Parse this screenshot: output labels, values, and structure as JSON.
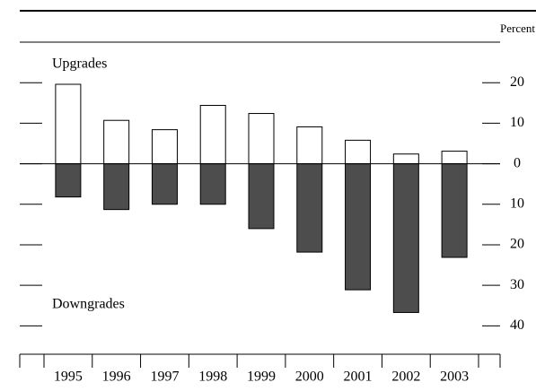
{
  "chart_data": {
    "type": "bar",
    "ylabel": "Percent",
    "categories": [
      "1995",
      "1996",
      "1997",
      "1998",
      "1999",
      "2000",
      "2001",
      "2002",
      "2003"
    ],
    "series": [
      {
        "name": "Upgrades",
        "color": "#ffffff",
        "values": [
          19.6,
          10.7,
          8.4,
          14.4,
          12.4,
          9.1,
          5.8,
          2.4,
          3.1
        ]
      },
      {
        "name": "Downgrades",
        "color": "#4d4d4d",
        "values": [
          -8.2,
          -11.3,
          -10,
          -10,
          -16,
          -21.8,
          -31.1,
          -36.7,
          -23.1
        ]
      }
    ],
    "ylim": [
      -47,
      30
    ],
    "yticks": [
      20,
      10,
      0,
      {
        "value": -10,
        "label": "10"
      },
      {
        "value": -20,
        "label": "20"
      },
      {
        "value": -30,
        "label": "30"
      },
      {
        "value": -40,
        "label": "40"
      }
    ]
  }
}
